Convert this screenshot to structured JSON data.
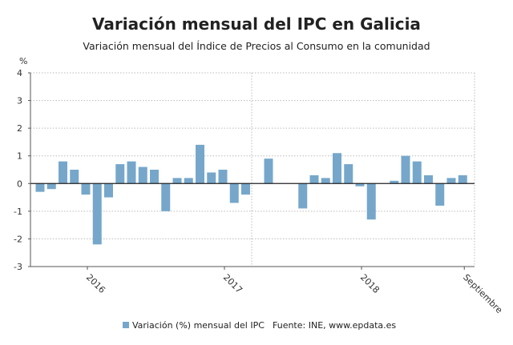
{
  "chart_data": {
    "type": "bar",
    "title": "Variación mensual del IPC en Galicia",
    "subtitle": "Variación mensual del Índice de Precios al Consumo en la comunidad",
    "ylabel": "%",
    "xlabel": "",
    "ylim": [
      -3,
      4
    ],
    "yticks": [
      4,
      3,
      2,
      1,
      0,
      -1,
      -2,
      -3
    ],
    "grid": true,
    "legend_position": "bottom",
    "bar_color": "#76a7cb",
    "categories": [
      "2015-08",
      "2015-09",
      "2015-10",
      "2015-11",
      "2015-12",
      "2016-01",
      "2016-02",
      "2016-03",
      "2016-04",
      "2016-05",
      "2016-06",
      "2016-07",
      "2016-08",
      "2016-09",
      "2016-10",
      "2016-11",
      "2016-12",
      "2017-01",
      "2017-02",
      "2017-03",
      "2017-04",
      "2017-05",
      "2017-06",
      "2017-07",
      "2017-08",
      "2017-09",
      "2017-10",
      "2017-11",
      "2017-12",
      "2018-01",
      "2018-02",
      "2018-03",
      "2018-04",
      "2018-05",
      "2018-06",
      "2018-07",
      "2018-08",
      "2018-09"
    ],
    "xtick_labels": [
      {
        "index": 4,
        "label": "2016"
      },
      {
        "index": 16,
        "label": "2017"
      },
      {
        "index": 28,
        "label": "2018"
      },
      {
        "index": 37,
        "label": "Septiembre"
      }
    ],
    "series": [
      {
        "name": "Variación (%) mensual del IPC",
        "values": [
          -0.3,
          -0.2,
          0.8,
          0.5,
          -0.4,
          -2.2,
          -0.5,
          0.7,
          0.8,
          0.6,
          0.5,
          -1.0,
          0.2,
          0.2,
          1.4,
          0.4,
          0.5,
          -0.7,
          -0.4,
          0.0,
          0.9,
          0.0,
          0.0,
          -0.9,
          0.3,
          0.2,
          1.1,
          0.7,
          -0.1,
          -1.3,
          0.0,
          0.1,
          1.0,
          0.8,
          0.3,
          -0.8,
          0.2,
          0.3
        ]
      }
    ],
    "source": "Fuente: INE, www.epdata.es"
  }
}
